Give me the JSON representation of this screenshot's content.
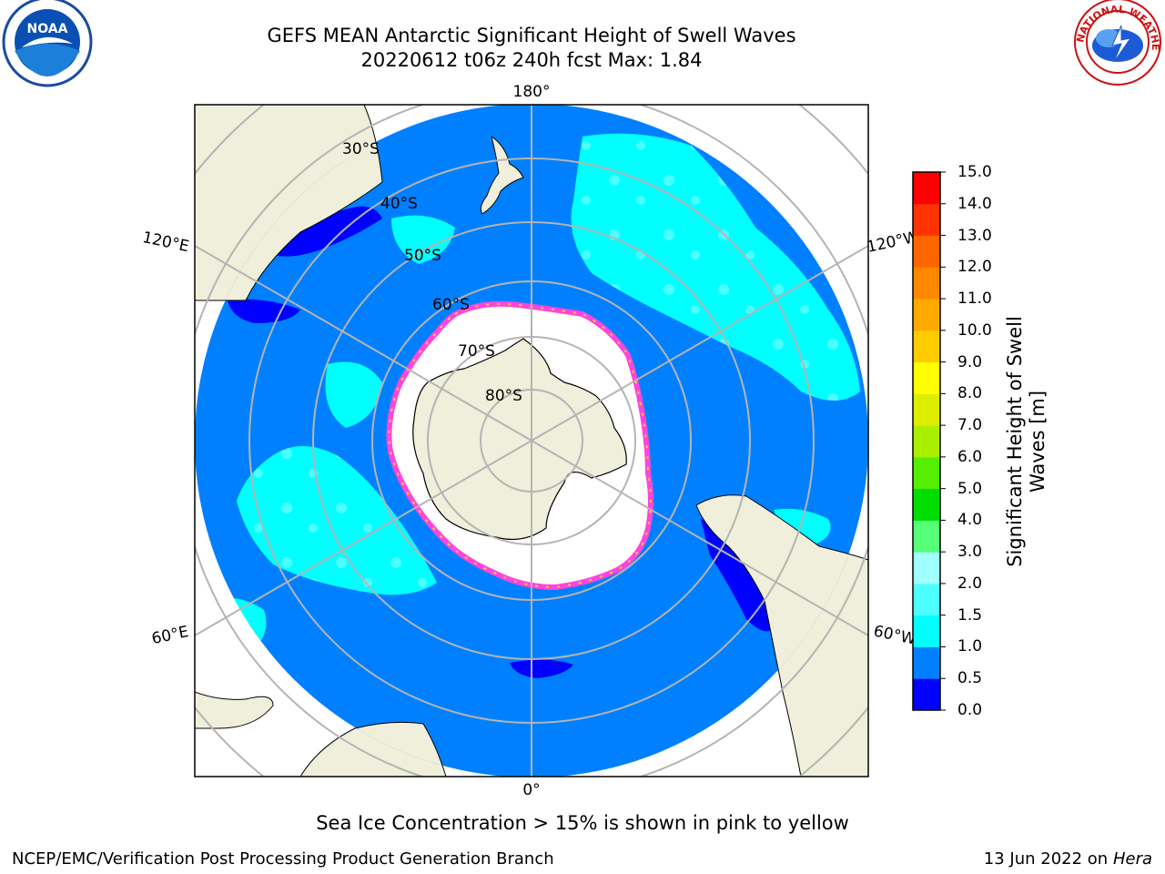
{
  "title": {
    "line1": "GEFS MEAN Antarctic Significant Height of Swell Waves",
    "line2": "20220612 t06z 240h fcst   Max: 1.84"
  },
  "map": {
    "projection": "south polar stereographic",
    "longitude_labels": [
      "180°",
      "0°",
      "120°E",
      "60°E",
      "120°W",
      "60°W"
    ],
    "latitude_labels": [
      "30°S",
      "40°S",
      "50°S",
      "60°S",
      "70°S",
      "80°S"
    ],
    "colors": {
      "land": "#efefdb",
      "grid": "#b4b4b4",
      "coast": "#000000",
      "sea_ice_edge": "#ff44dd",
      "sea_ice_fill": "#ffffff"
    }
  },
  "colorbar": {
    "label_line1": "Significant Height of Swell",
    "label_line2": "Waves [m]",
    "ticks": [
      "0.0",
      "0.5",
      "1.0",
      "1.5",
      "2.0",
      "3.0",
      "4.0",
      "5.0",
      "6.0",
      "7.0",
      "8.0",
      "9.0",
      "10.0",
      "11.0",
      "12.0",
      "13.0",
      "14.0",
      "15.0"
    ],
    "colors": [
      "#0000ff",
      "#0080ff",
      "#00ffff",
      "#4cffff",
      "#a0ffff",
      "#55ff77",
      "#00dd00",
      "#55ee00",
      "#aaee00",
      "#ddee00",
      "#ffff00",
      "#ffcc00",
      "#ffaa00",
      "#ff8800",
      "#ff6600",
      "#ff3300",
      "#ff0000"
    ]
  },
  "note": "Sea Ice Concentration > 15% is shown in pink to yellow",
  "footer": {
    "credit": "NCEP/EMC/Verification Post Processing Product Generation Branch",
    "date": "13 Jun 2022 on",
    "machine": "Hera"
  },
  "logos": {
    "noaa": "NOAA",
    "nws": "NATIONAL WEATHER SERVICE"
  }
}
